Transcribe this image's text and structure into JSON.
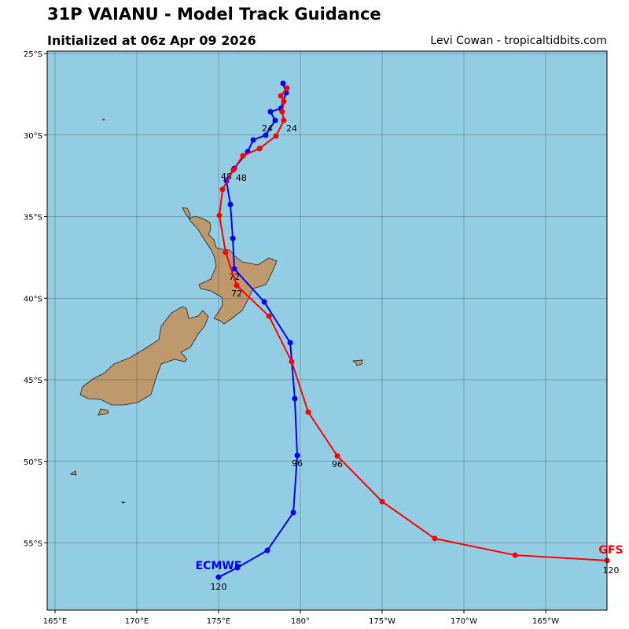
{
  "header": {
    "title": "31P VAIANU - Model Track Guidance",
    "subtitle": "Initialized at 06z Apr 09 2026",
    "credit": "Levi Cowan - tropicaltidbits.com"
  },
  "map": {
    "lon_ticks": [
      {
        "lon": 165,
        "label": "165°E"
      },
      {
        "lon": 170,
        "label": "170°E"
      },
      {
        "lon": 175,
        "label": "175°E"
      },
      {
        "lon": 180,
        "label": "180°"
      },
      {
        "lon": -175,
        "label": "175°W"
      },
      {
        "lon": -170,
        "label": "170°W"
      },
      {
        "lon": -165,
        "label": "165°W"
      }
    ],
    "lat_ticks": [
      {
        "lat": -25,
        "label": "25°S"
      },
      {
        "lat": -30,
        "label": "30°S"
      },
      {
        "lat": -35,
        "label": "35°S"
      },
      {
        "lat": -40,
        "label": "40°S"
      },
      {
        "lat": -45,
        "label": "45°S"
      },
      {
        "lat": -50,
        "label": "50°S"
      },
      {
        "lat": -55,
        "label": "55°S"
      }
    ],
    "ocean_color": "#93cde3",
    "land_color": "#bf996e",
    "grid": true
  },
  "chart_data": {
    "type": "line",
    "hours": [
      0,
      6,
      12,
      18,
      24,
      30,
      36,
      42,
      48,
      54,
      60,
      66,
      72,
      78,
      84,
      90,
      96,
      102,
      108,
      114,
      120
    ],
    "labeled_hours": [
      24,
      48,
      72,
      96,
      120
    ],
    "series": [
      {
        "name": "ECMWF",
        "color": "#0000ff",
        "lon": [
          178.94,
          179.13,
          178.8,
          178.17,
          178.46,
          177.88,
          177.12,
          176.78,
          175.96,
          175.48,
          175.72,
          175.87,
          175.96,
          177.79,
          179.38,
          179.66,
          179.81,
          179.57,
          177.98,
          176.15,
          175.0
        ],
        "lat": [
          -26.83,
          -27.41,
          -28.37,
          -28.57,
          -29.1,
          -30.01,
          -30.3,
          -31.02,
          -32.04,
          -32.81,
          -34.25,
          -36.33,
          -38.2,
          -40.23,
          -42.73,
          -46.16,
          -49.63,
          -53.14,
          -55.46,
          -56.52,
          -57.1
        ]
      },
      {
        "name": "GFS",
        "color": "#ff0000",
        "lon": [
          179.18,
          178.8,
          178.99,
          178.89,
          178.99,
          178.51,
          177.5,
          176.49,
          175.91,
          175.24,
          175.05,
          175.43,
          176.11,
          178.08,
          179.47,
          -179.52,
          -177.74,
          -175.0,
          -171.78,
          -166.87,
          -161.25
        ],
        "lat": [
          -27.12,
          -27.6,
          -27.94,
          -28.57,
          -29.1,
          -30.06,
          -30.83,
          -31.27,
          -32.13,
          -33.34,
          -34.93,
          -37.19,
          -39.22,
          -41.1,
          -43.89,
          -46.98,
          -49.67,
          -52.47,
          -54.73,
          -55.75,
          -56.08
        ]
      }
    ]
  }
}
